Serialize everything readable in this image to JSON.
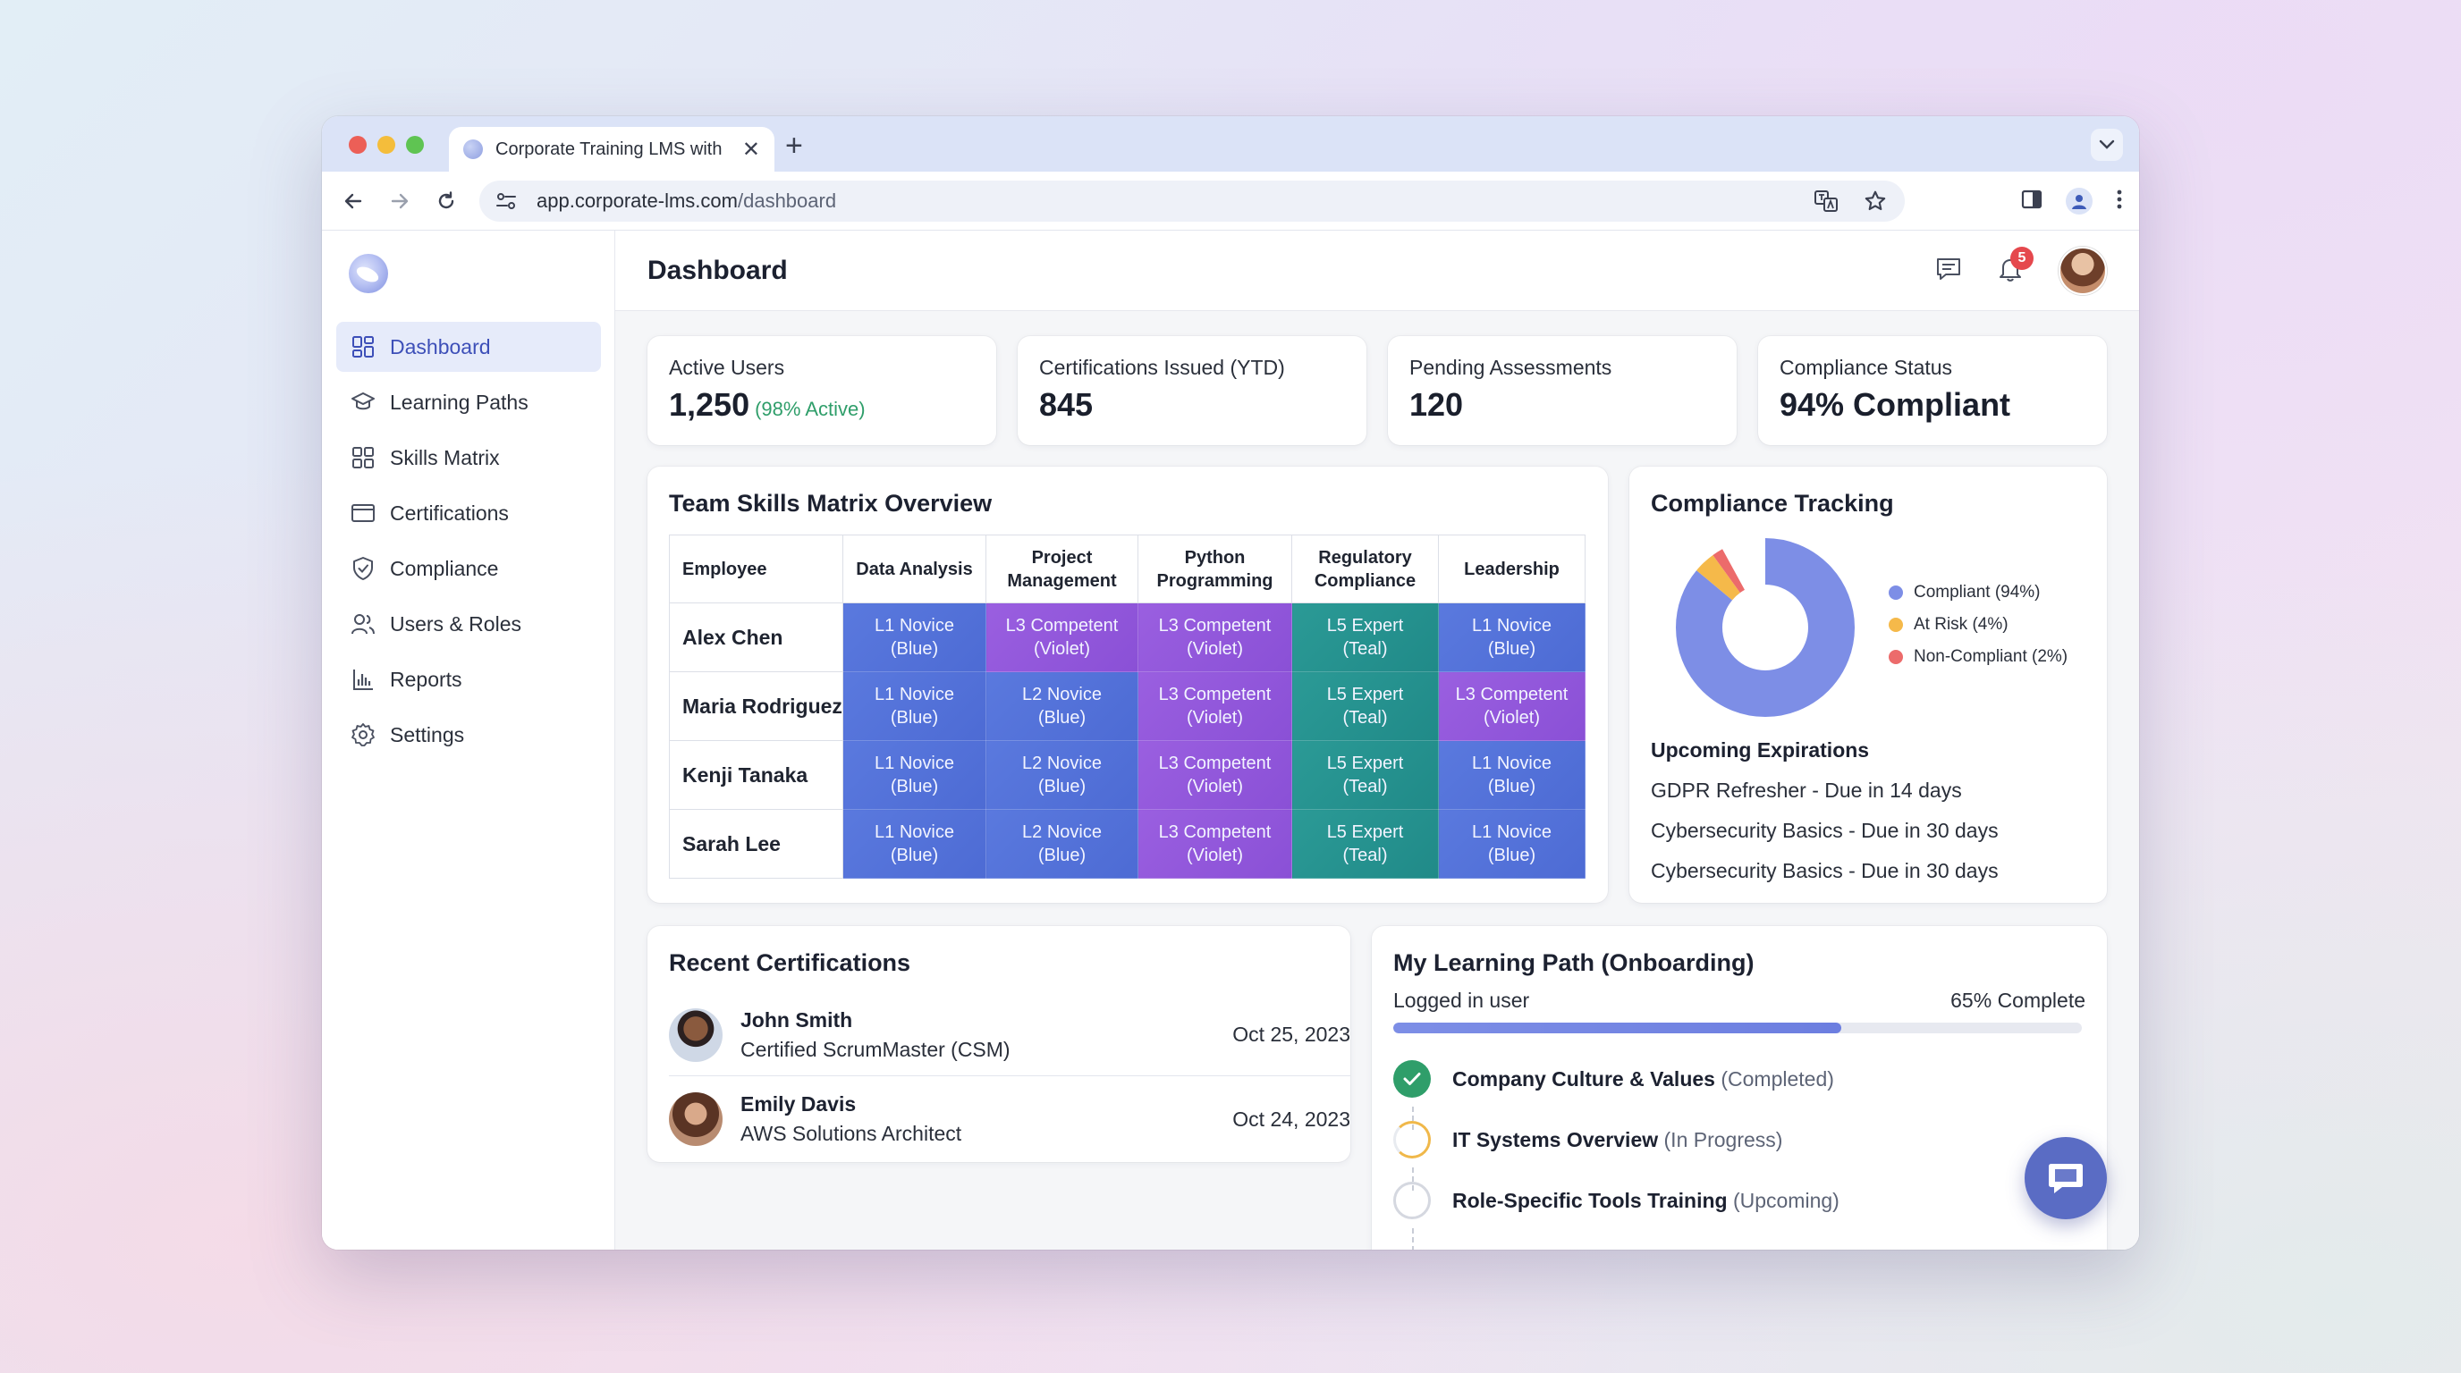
{
  "browser": {
    "tab_title": "Corporate Training LMS with",
    "url_host": "app.corporate-lms.com",
    "url_path": "/dashboard"
  },
  "sidebar": {
    "items": [
      {
        "label": "Dashboard",
        "icon": "dashboard-icon",
        "active": true
      },
      {
        "label": "Learning Paths",
        "icon": "graduation-cap-icon"
      },
      {
        "label": "Skills Matrix",
        "icon": "grid-icon"
      },
      {
        "label": "Certifications",
        "icon": "certificate-icon"
      },
      {
        "label": "Compliance",
        "icon": "shield-check-icon"
      },
      {
        "label": "Users & Roles",
        "icon": "users-icon"
      },
      {
        "label": "Reports",
        "icon": "bar-chart-icon"
      },
      {
        "label": "Settings",
        "icon": "gear-icon"
      }
    ]
  },
  "header": {
    "title": "Dashboard",
    "notification_count": "5"
  },
  "kpis": [
    {
      "label": "Active Users",
      "value": "1,250",
      "sub": "(98% Active)"
    },
    {
      "label": "Certifications Issued (YTD)",
      "value": "845"
    },
    {
      "label": "Pending Assessments",
      "value": "120"
    },
    {
      "label": "Compliance Status",
      "value": "94% Compliant"
    }
  ],
  "skills_matrix": {
    "title": "Team Skills Matrix Overview",
    "columns": [
      "Employee",
      "Data Analysis",
      "Project Management",
      "Python Programming",
      "Regulatory Compliance",
      "Leadership"
    ],
    "rows": [
      {
        "name": "Alex Chen",
        "cells": [
          [
            "L1 Novice",
            "(Blue)"
          ],
          [
            "L3 Competent",
            "(Violet)"
          ],
          [
            "L3 Competent",
            "(Violet)"
          ],
          [
            "L5 Expert",
            "(Teal)"
          ],
          [
            "L1 Novice",
            "(Blue)"
          ]
        ]
      },
      {
        "name": "Maria Rodriguez",
        "cells": [
          [
            "L1 Novice",
            "(Blue)"
          ],
          [
            "L2 Novice",
            "(Blue)"
          ],
          [
            "L3 Competent",
            "(Violet)"
          ],
          [
            "L5 Expert",
            "(Teal)"
          ],
          [
            "L3 Competent",
            "(Violet)"
          ]
        ]
      },
      {
        "name": "Kenji Tanaka",
        "cells": [
          [
            "L1 Novice",
            "(Blue)"
          ],
          [
            "L2 Novice",
            "(Blue)"
          ],
          [
            "L3 Competent",
            "(Violet)"
          ],
          [
            "L5 Expert",
            "(Teal)"
          ],
          [
            "L1 Novice",
            "(Blue)"
          ]
        ]
      },
      {
        "name": "Sarah Lee",
        "cells": [
          [
            "L1 Novice",
            "(Blue)"
          ],
          [
            "L2 Novice",
            "(Blue)"
          ],
          [
            "L3 Competent",
            "(Violet)"
          ],
          [
            "L5 Expert",
            "(Teal)"
          ],
          [
            "L1 Novice",
            "(Blue)"
          ]
        ]
      }
    ]
  },
  "compliance": {
    "title": "Compliance Tracking",
    "legend": [
      {
        "label": "Compliant (94%)",
        "color": "#7d8ee6"
      },
      {
        "label": "At Risk (4%)",
        "color": "#f5b94a"
      },
      {
        "label": "Non-Compliant (2%)",
        "color": "#ec6b6b"
      }
    ],
    "upcoming_title": "Upcoming Expirations",
    "expirations": [
      "GDPR Refresher - Due in 14 days",
      "Cybersecurity Basics - Due in 30 days",
      "Cybersecurity Basics - Due in 30 days"
    ]
  },
  "chart_data": {
    "type": "pie",
    "categories": [
      "Compliant",
      "At Risk",
      "Non-Compliant"
    ],
    "values": [
      94,
      4,
      2
    ],
    "colors": [
      "#7d8ee6",
      "#f5b94a",
      "#ec6b6b"
    ],
    "title": "",
    "legend_position": "right"
  },
  "recent_certs": {
    "title": "Recent Certifications",
    "items": [
      {
        "name": "John Smith",
        "cert": "Certified ScrumMaster (CSM)",
        "date": "Oct 25, 2023"
      },
      {
        "name": "Emily Davis",
        "cert": "AWS Solutions Architect",
        "date": "Oct 24, 2023"
      }
    ]
  },
  "learning_path": {
    "title": "My Learning Path (Onboarding)",
    "user": "Logged in user",
    "percent_label": "65% Complete",
    "progress": 0.65,
    "steps": [
      {
        "name": "Company Culture & Values",
        "status": "(Completed)",
        "state": "done"
      },
      {
        "name": "IT Systems Overview",
        "status": "(In Progress)",
        "state": "progress"
      },
      {
        "name": "Role-Specific Tools Training",
        "status": "(Upcoming)",
        "state": "upcoming"
      }
    ]
  }
}
